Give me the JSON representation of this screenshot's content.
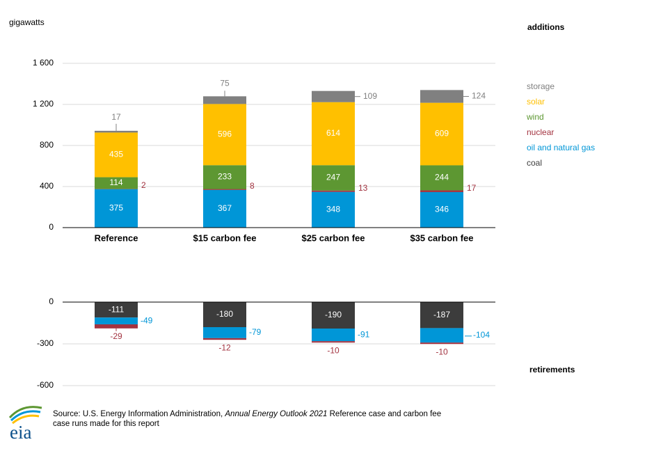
{
  "unit_label": "gigawatts",
  "additions_label": "additions",
  "retirements_label": "retirements",
  "legend": [
    {
      "key": "storage",
      "label": "storage",
      "color": "#808080"
    },
    {
      "key": "solar",
      "label": "solar",
      "color": "#ffc000"
    },
    {
      "key": "wind",
      "label": "wind",
      "color": "#5d9732"
    },
    {
      "key": "nuclear",
      "label": "nuclear",
      "color": "#a33340"
    },
    {
      "key": "oil_gas",
      "label": "oil and natural gas",
      "color": "#0096d7"
    },
    {
      "key": "coal",
      "label": "coal",
      "color": "#3c3c3c"
    }
  ],
  "source": {
    "prefix": "Source: U.S. Energy Information Administration, ",
    "italic": "Annual Energy Outlook 2021",
    "suffix": " Reference case and carbon fee case runs made for this report"
  },
  "logo_text": "eia",
  "chart_data": [
    {
      "type": "bar",
      "stacked": true,
      "panel": "additions",
      "categories": [
        "Reference",
        "$15 carbon fee",
        "$25 carbon fee",
        "$35 carbon fee"
      ],
      "ylim": [
        0,
        1600
      ],
      "yticks": [
        0,
        400,
        800,
        1200,
        1600
      ],
      "ytick_labels": [
        "0",
        "400",
        "800",
        "1 200",
        "1 600"
      ],
      "grid": true,
      "series": [
        {
          "name": "oil and natural gas",
          "key": "oil_gas",
          "values": [
            375,
            367,
            348,
            346
          ]
        },
        {
          "name": "nuclear",
          "key": "nuclear",
          "values": [
            2,
            8,
            13,
            17
          ]
        },
        {
          "name": "wind",
          "key": "wind",
          "values": [
            114,
            233,
            247,
            244
          ]
        },
        {
          "name": "solar",
          "key": "solar",
          "values": [
            435,
            596,
            614,
            609
          ]
        },
        {
          "name": "storage",
          "key": "storage",
          "values": [
            17,
            75,
            109,
            124
          ]
        }
      ]
    },
    {
      "type": "bar",
      "stacked": true,
      "panel": "retirements",
      "categories": [
        "Reference",
        "$15 carbon fee",
        "$25 carbon fee",
        "$35 carbon fee"
      ],
      "ylim": [
        -600,
        0
      ],
      "yticks": [
        0,
        -300,
        -600
      ],
      "ytick_labels": [
        "0",
        "-300",
        "-600"
      ],
      "grid": true,
      "series": [
        {
          "name": "coal",
          "key": "coal",
          "values": [
            -111,
            -180,
            -190,
            -187
          ]
        },
        {
          "name": "oil and natural gas",
          "key": "oil_gas",
          "values": [
            -49,
            -79,
            -91,
            -104
          ]
        },
        {
          "name": "nuclear",
          "key": "nuclear",
          "values": [
            -29,
            -12,
            -10,
            -10
          ]
        }
      ]
    }
  ]
}
